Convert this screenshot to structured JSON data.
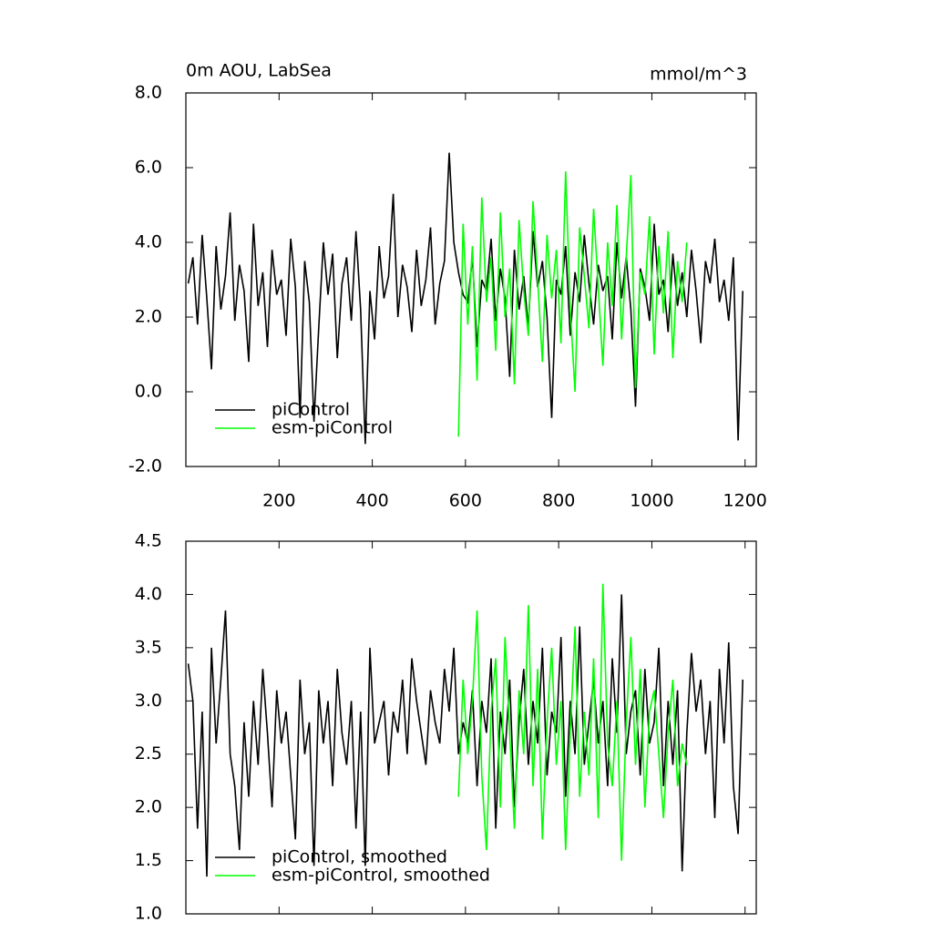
{
  "chart_data": [
    {
      "type": "line",
      "title": "0m AOU, LabSea",
      "units": "mmol/m^3",
      "xlim": [
        0,
        1224
      ],
      "xticks": [
        200,
        400,
        600,
        800,
        1000,
        1200
      ],
      "show_xtick_labels": true,
      "ylim": [
        -2,
        8
      ],
      "yticks": [
        {
          "value": -2,
          "label": "-2.0"
        },
        {
          "value": 0,
          "label": "0.0"
        },
        {
          "value": 2,
          "label": "2.0"
        },
        {
          "value": 4,
          "label": "4.0"
        },
        {
          "value": 6,
          "label": "6.0"
        },
        {
          "value": 8,
          "label": "8.0"
        }
      ],
      "legend": "lower left",
      "series": [
        {
          "name": "piControl",
          "color": "#000000",
          "x": [
            5,
            15,
            25,
            35,
            45,
            55,
            65,
            75,
            85,
            95,
            105,
            115,
            125,
            135,
            145,
            155,
            165,
            175,
            185,
            195,
            205,
            215,
            225,
            235,
            245,
            255,
            265,
            275,
            285,
            295,
            305,
            315,
            325,
            335,
            345,
            355,
            365,
            375,
            385,
            395,
            405,
            415,
            425,
            435,
            445,
            455,
            465,
            475,
            485,
            495,
            505,
            515,
            525,
            535,
            545,
            555,
            565,
            575,
            585,
            595,
            605,
            615,
            625,
            635,
            645,
            655,
            665,
            675,
            685,
            695,
            705,
            715,
            725,
            735,
            745,
            755,
            765,
            775,
            785,
            795,
            805,
            815,
            825,
            835,
            845,
            855,
            865,
            875,
            885,
            895,
            905,
            915,
            925,
            935,
            945,
            955,
            965,
            975,
            985,
            995,
            1005,
            1015,
            1025,
            1035,
            1045,
            1055,
            1065,
            1075,
            1085,
            1095,
            1105,
            1115,
            1125,
            1135,
            1145,
            1155,
            1165,
            1175,
            1185,
            1195
          ],
          "values": [
            2.9,
            3.6,
            1.8,
            4.2,
            2.5,
            0.6,
            3.9,
            2.2,
            3.1,
            4.8,
            1.9,
            3.4,
            2.7,
            0.8,
            4.5,
            2.3,
            3.2,
            1.2,
            3.8,
            2.6,
            3.0,
            1.5,
            4.1,
            2.8,
            -0.7,
            3.5,
            2.4,
            -0.8,
            1.7,
            4.0,
            2.6,
            3.7,
            0.9,
            2.9,
            3.6,
            1.9,
            4.3,
            2.2,
            -1.4,
            2.7,
            1.4,
            3.9,
            2.5,
            3.1,
            5.3,
            2.0,
            3.4,
            2.8,
            1.6,
            3.8,
            2.3,
            3.0,
            4.4,
            1.8,
            2.9,
            3.5,
            6.4,
            4.0,
            3.2,
            2.6,
            2.4,
            3.6,
            1.2,
            3.0,
            2.7,
            4.1,
            1.9,
            3.3,
            2.5,
            0.4,
            3.8,
            2.2,
            3.1,
            1.7,
            4.3,
            2.8,
            3.5,
            2.0,
            -0.7,
            3.0,
            2.6,
            3.9,
            1.5,
            3.2,
            2.4,
            4.2,
            2.9,
            1.8,
            3.4,
            2.7,
            3.1,
            1.4,
            4.0,
            2.5,
            3.6,
            2.2,
            -0.4,
            3.3,
            2.8,
            1.9,
            4.5,
            2.6,
            3.0,
            1.6,
            3.7,
            2.3,
            3.2,
            2.0,
            3.8,
            2.7,
            1.3,
            3.5,
            2.9,
            4.1,
            2.4,
            3.0,
            1.9,
            3.6,
            -1.3,
            2.7
          ]
        },
        {
          "name": "esm-piControl",
          "color": "#00ff00",
          "x": [
            585,
            595,
            605,
            615,
            625,
            635,
            645,
            655,
            665,
            675,
            685,
            695,
            705,
            715,
            725,
            735,
            745,
            755,
            765,
            775,
            785,
            795,
            805,
            815,
            825,
            835,
            845,
            855,
            865,
            875,
            885,
            895,
            905,
            915,
            925,
            935,
            945,
            955,
            965,
            975,
            985,
            995,
            1005,
            1015,
            1025,
            1035,
            1045,
            1055,
            1065,
            1075
          ],
          "values": [
            -1.2,
            4.5,
            1.8,
            3.9,
            0.3,
            5.2,
            2.4,
            3.6,
            1.1,
            4.8,
            2.0,
            3.3,
            0.2,
            4.6,
            2.7,
            1.5,
            5.1,
            3.0,
            0.8,
            4.2,
            2.5,
            3.8,
            1.3,
            5.9,
            2.2,
            0.0,
            4.4,
            3.1,
            1.7,
            4.9,
            2.8,
            0.7,
            4.0,
            2.3,
            5.0,
            1.4,
            3.6,
            5.8,
            0.1,
            3.2,
            2.6,
            4.7,
            1.0,
            3.9,
            2.1,
            4.3,
            0.9,
            3.5,
            2.4,
            4.0
          ]
        }
      ]
    },
    {
      "type": "line",
      "xlim": [
        0,
        1224
      ],
      "xticks": [
        200,
        400,
        600,
        800,
        1000,
        1200
      ],
      "show_xtick_labels": false,
      "ylim": [
        1,
        4.5
      ],
      "yticks": [
        {
          "value": 1,
          "label": "1.0"
        },
        1.5,
        {
          "value": 2,
          "label": "2.0"
        },
        2.5,
        {
          "value": 3,
          "label": "3.0"
        },
        3.5,
        {
          "value": 4,
          "label": "4.0"
        },
        4.5
      ],
      "legend": "lower left",
      "series": [
        {
          "name": "piControl, smoothed",
          "color": "#000000",
          "x": [
            5,
            15,
            25,
            35,
            45,
            55,
            65,
            75,
            85,
            95,
            105,
            115,
            125,
            135,
            145,
            155,
            165,
            175,
            185,
            195,
            205,
            215,
            225,
            235,
            245,
            255,
            265,
            275,
            285,
            295,
            305,
            315,
            325,
            335,
            345,
            355,
            365,
            375,
            385,
            395,
            405,
            415,
            425,
            435,
            445,
            455,
            465,
            475,
            485,
            495,
            505,
            515,
            525,
            535,
            545,
            555,
            565,
            575,
            585,
            595,
            605,
            615,
            625,
            635,
            645,
            655,
            665,
            675,
            685,
            695,
            705,
            715,
            725,
            735,
            745,
            755,
            765,
            775,
            785,
            795,
            805,
            815,
            825,
            835,
            845,
            855,
            865,
            875,
            885,
            895,
            905,
            915,
            925,
            935,
            945,
            955,
            965,
            975,
            985,
            995,
            1005,
            1015,
            1025,
            1035,
            1045,
            1055,
            1065,
            1075,
            1085,
            1095,
            1105,
            1115,
            1125,
            1135,
            1145,
            1155,
            1165,
            1175,
            1185,
            1195
          ],
          "values": [
            3.35,
            3.0,
            1.8,
            2.9,
            1.35,
            3.5,
            2.6,
            3.2,
            3.85,
            2.5,
            2.2,
            1.6,
            2.8,
            2.1,
            3.0,
            2.4,
            3.3,
            2.7,
            2.0,
            3.1,
            2.6,
            2.9,
            2.3,
            1.7,
            3.2,
            2.5,
            2.8,
            1.45,
            3.1,
            2.6,
            3.0,
            2.2,
            3.3,
            2.7,
            2.4,
            3.0,
            1.8,
            2.9,
            1.45,
            3.5,
            2.6,
            2.8,
            3.0,
            2.3,
            2.9,
            2.7,
            3.2,
            2.5,
            3.4,
            3.0,
            2.7,
            2.4,
            3.1,
            2.8,
            2.6,
            3.3,
            2.9,
            3.5,
            2.5,
            2.8,
            2.6,
            3.1,
            2.2,
            3.0,
            2.7,
            3.4,
            1.8,
            2.9,
            2.5,
            3.2,
            2.0,
            2.8,
            3.3,
            2.4,
            3.0,
            2.6,
            3.5,
            2.3,
            2.9,
            2.7,
            3.6,
            2.1,
            3.0,
            2.5,
            3.7,
            2.4,
            2.8,
            3.2,
            2.6,
            3.0,
            2.2,
            3.4,
            2.7,
            4.0,
            2.5,
            2.9,
            3.1,
            2.3,
            3.3,
            2.6,
            2.8,
            3.5,
            2.2,
            3.0,
            2.4,
            3.1,
            1.4,
            2.7,
            3.45,
            2.9,
            3.2,
            2.5,
            3.0,
            1.9,
            3.3,
            2.6,
            3.55,
            2.2,
            1.75,
            3.2
          ]
        },
        {
          "name": "esm-piControl, smoothed",
          "color": "#00ff00",
          "x": [
            585,
            595,
            605,
            615,
            625,
            635,
            645,
            655,
            665,
            675,
            685,
            695,
            705,
            715,
            725,
            735,
            745,
            755,
            765,
            775,
            785,
            795,
            805,
            815,
            825,
            835,
            845,
            855,
            865,
            875,
            885,
            895,
            905,
            915,
            925,
            935,
            945,
            955,
            965,
            975,
            985,
            995,
            1005,
            1015,
            1025,
            1035,
            1045,
            1055,
            1065,
            1075
          ],
          "values": [
            2.1,
            3.2,
            2.5,
            3.0,
            3.85,
            2.3,
            1.6,
            2.9,
            3.4,
            2.0,
            3.6,
            2.7,
            1.8,
            3.1,
            2.5,
            3.9,
            2.2,
            3.3,
            1.7,
            2.8,
            3.5,
            2.4,
            3.0,
            1.6,
            2.7,
            3.7,
            2.1,
            2.9,
            2.3,
            3.4,
            1.9,
            4.1,
            2.6,
            2.2,
            3.0,
            1.5,
            2.8,
            3.6,
            2.4,
            3.3,
            2.0,
            2.9,
            3.1,
            2.5,
            1.9,
            2.7,
            3.2,
            2.2,
            2.6,
            2.4
          ]
        }
      ]
    }
  ]
}
